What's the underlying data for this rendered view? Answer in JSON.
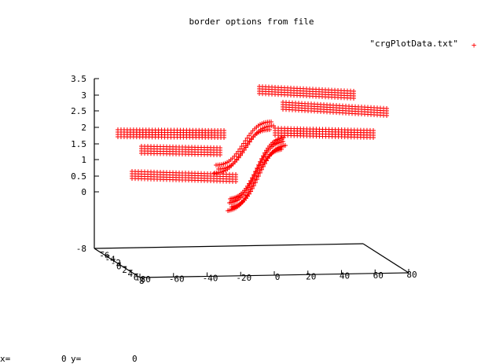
{
  "chart_data": {
    "type": "scatter",
    "title": "border options from file",
    "legend": {
      "label": "\"crgPlotData.txt\"",
      "placement": "top-right",
      "marker": "+"
    },
    "series": [
      {
        "color": "#ff0000",
        "marker": "+"
      }
    ],
    "z_ticks": [
      "3.5",
      "3",
      "2.5",
      "2",
      "1.5",
      "1",
      "0.5",
      "0",
      "-8"
    ],
    "x_ticks": [
      "-80",
      "-60",
      "-40",
      "-20",
      "0",
      "20",
      "40",
      "60",
      "80"
    ],
    "y_ticks": [
      "-8",
      "-6",
      "-4",
      "-2",
      "0",
      "2",
      "4",
      "6",
      "8"
    ],
    "z_range": [
      0,
      3.5
    ],
    "grid": false
  },
  "status": {
    "x_label": "x=",
    "x_value": "0",
    "y_label": "y=",
    "y_value": "0"
  }
}
